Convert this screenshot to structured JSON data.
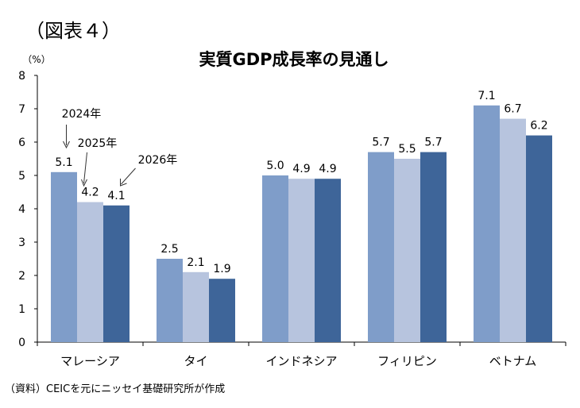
{
  "figure_label": "（図表４）",
  "source_note": "（資料）CEICを元にニッセイ基礎研究所が作成",
  "chart_data": {
    "type": "bar",
    "title": "実質GDP成長率の見通し",
    "ylabel": "（%）",
    "xlabel": "",
    "ylim": [
      0,
      8
    ],
    "yticks": [
      0,
      1,
      2,
      3,
      4,
      5,
      6,
      7,
      8
    ],
    "grid": false,
    "categories": [
      "マレーシア",
      "タイ",
      "インドネシア",
      "フィリピン",
      "ベトナム"
    ],
    "series": [
      {
        "name": "2024年",
        "color": "#7f9dc9",
        "values": [
          5.1,
          2.5,
          5.0,
          5.7,
          7.1
        ]
      },
      {
        "name": "2025年",
        "color": "#b7c4de",
        "values": [
          4.2,
          2.1,
          4.9,
          5.5,
          6.7
        ]
      },
      {
        "name": "2026年",
        "color": "#3e6599",
        "values": [
          4.1,
          1.9,
          4.9,
          5.7,
          6.2
        ]
      }
    ],
    "value_labels": [
      [
        "5.1",
        "2.5",
        "5.0",
        "5.7",
        "7.1"
      ],
      [
        "4.2",
        "2.1",
        "4.9",
        "5.5",
        "6.7"
      ],
      [
        "4.1",
        "1.9",
        "4.9",
        "5.7",
        "6.2"
      ]
    ],
    "legend": "inline annotations with arrows on the first category"
  }
}
